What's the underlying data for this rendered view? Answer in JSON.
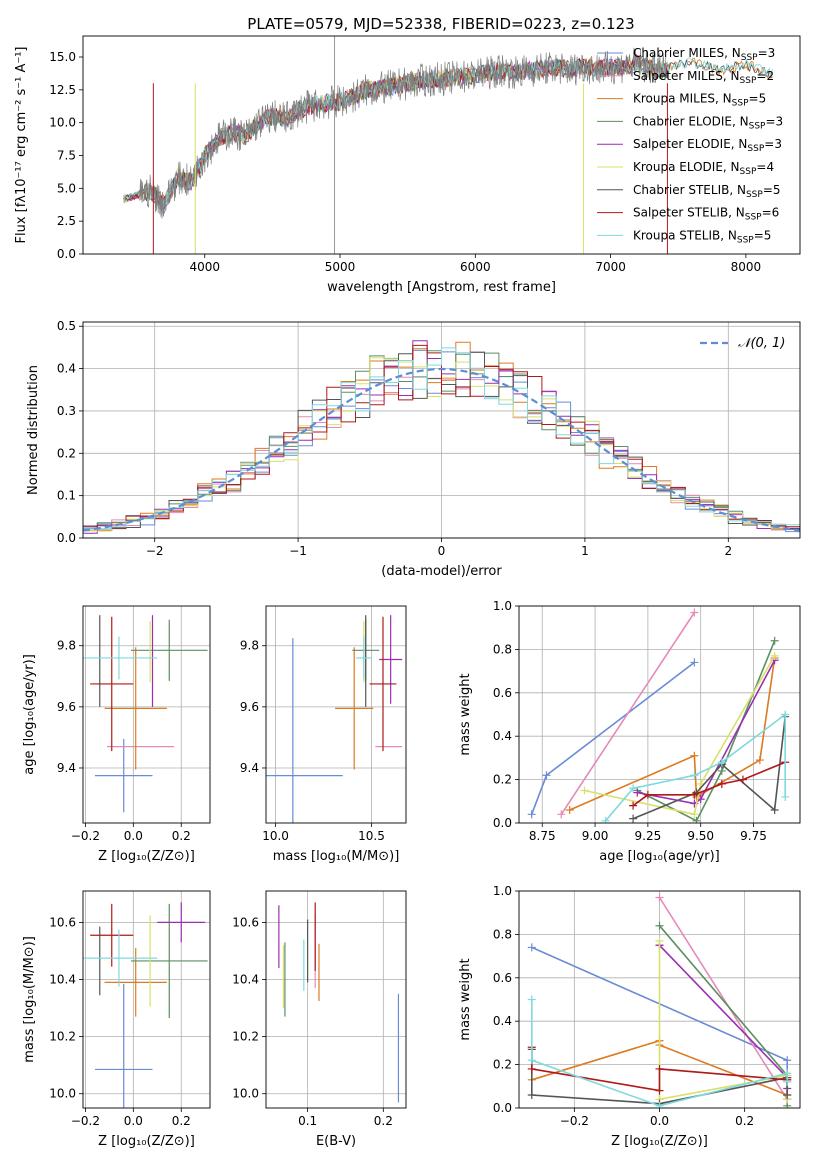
{
  "colors": {
    "Chabrier MILES": "#6a8bd6",
    "Salpeter MILES": "#e589b9",
    "Kroupa MILES": "#dd7a22",
    "Chabrier ELODIE": "#5d8f62",
    "Salpeter ELODIE": "#9a2fb1",
    "Kroupa ELODIE": "#d9e06a",
    "Chabrier STELIB": "#555555",
    "Salpeter STELIB": "#b01919",
    "Kroupa STELIB": "#7fd9dd"
  },
  "chart_data": [
    {
      "id": "spectrum",
      "type": "line",
      "title": "PLATE=0579, MJD=52338, FIBERID=0223, z=0.123",
      "xlabel": "wavelength [Angstrom, rest frame]",
      "ylabel": "Flux [fλ10⁻¹⁷ erg cm⁻² s⁻¹ A⁻¹]",
      "xlim": [
        3100,
        8400
      ],
      "ylim": [
        0,
        16.6
      ],
      "xticks": [
        4000,
        5000,
        6000,
        7000,
        8000
      ],
      "yticks": [
        0.0,
        2.5,
        5.0,
        7.5,
        10.0,
        12.5,
        15.0
      ],
      "grid": false,
      "legend_position": "right",
      "legend": [
        {
          "series": "Chabrier MILES",
          "label": "Chabrier MILES, N",
          "sub": "SSP",
          "n": "=3"
        },
        {
          "series": "Salpeter MILES",
          "label": "Salpeter MILES, N",
          "sub": "SSP",
          "n": "=2"
        },
        {
          "series": "Kroupa MILES",
          "label": "Kroupa MILES, N",
          "sub": "SSP",
          "n": "=5"
        },
        {
          "series": "Chabrier ELODIE",
          "label": "Chabrier ELODIE, N",
          "sub": "SSP",
          "n": "=3"
        },
        {
          "series": "Salpeter ELODIE",
          "label": "Salpeter ELODIE, N",
          "sub": "SSP",
          "n": "=3"
        },
        {
          "series": "Kroupa ELODIE",
          "label": "Kroupa ELODIE, N",
          "sub": "SSP",
          "n": "=4"
        },
        {
          "series": "Chabrier STELIB",
          "label": "Chabrier STELIB, N",
          "sub": "SSP",
          "n": "=5"
        },
        {
          "series": "Salpeter STELIB",
          "label": "Salpeter STELIB, N",
          "sub": "SSP",
          "n": "=6"
        },
        {
          "series": "Kroupa STELIB",
          "label": "Kroupa STELIB, N",
          "sub": "SSP",
          "n": "=5"
        }
      ],
      "data_spectrum": {
        "color": "#808080",
        "x": [
          3400,
          3500,
          3600,
          3700,
          3800,
          3900,
          4000,
          4100,
          4200,
          4300,
          4400,
          4500,
          4600,
          4700,
          4800,
          4900,
          5000,
          5100,
          5200,
          5300,
          5400,
          5500,
          5600,
          5700,
          5800,
          5900,
          6000,
          6100,
          6200,
          6300,
          6400,
          6500,
          6600,
          6700,
          6800,
          6900,
          7000,
          7100,
          7200,
          7300,
          7400
        ],
        "y": [
          4.2,
          4.5,
          4.8,
          3.8,
          5.8,
          5.5,
          7.5,
          8.8,
          9.3,
          9.0,
          10.0,
          10.5,
          10.3,
          11.0,
          11.3,
          11.5,
          11.6,
          12.0,
          12.5,
          12.6,
          12.8,
          13.0,
          13.2,
          13.3,
          13.4,
          13.5,
          13.6,
          13.8,
          14.0,
          13.8,
          14.0,
          14.1,
          14.2,
          14.0,
          14.3,
          14.1,
          14.2,
          14.3,
          14.5,
          14.1,
          14.0
        ],
        "model_extension_x": [
          7400,
          7600,
          7800,
          8000,
          8200
        ],
        "model_extension_y": [
          14.2,
          14.6,
          14.0,
          14.4,
          13.7
        ]
      }
    },
    {
      "id": "residuals",
      "type": "histogram",
      "xlabel": "(data-model)/error",
      "ylabel": "Normed distribution",
      "xlim": [
        -2.5,
        2.5
      ],
      "ylim": [
        0,
        0.51
      ],
      "xticks": [
        -2,
        -1,
        0,
        1,
        2
      ],
      "yticks": [
        0.0,
        0.1,
        0.2,
        0.3,
        0.4,
        0.5
      ],
      "grid": true,
      "legend_position": "top-right",
      "legend_label": "𝒩(0, 1)",
      "normal_curve": {
        "mean": 0,
        "sigma": 1,
        "color": "#5b8ed6"
      },
      "bin_width": 0.1
    },
    {
      "id": "age-vs-Z",
      "type": "errorbar",
      "xlabel": "Z [log₁₀(Z/Z⊙)]",
      "ylabel": "age  [log₁₀(age/yr)]",
      "xlim": [
        -0.21,
        0.32
      ],
      "ylim": [
        9.22,
        9.93
      ],
      "xticks": [
        -0.2,
        0.0,
        0.2
      ],
      "yticks": [
        9.4,
        9.6,
        9.8
      ],
      "grid": true,
      "points": [
        {
          "series": "Chabrier MILES",
          "x": -0.04,
          "xerr": 0.12,
          "y": 9.375,
          "yerr": 0.12
        },
        {
          "series": "Salpeter MILES",
          "x": 0.03,
          "xerr": 0.14,
          "y": 9.47,
          "yerr": 0.0
        },
        {
          "series": "Kroupa MILES",
          "x": 0.01,
          "xerr": 0.13,
          "y": 9.595,
          "yerr": 0.2
        },
        {
          "series": "Chabrier ELODIE",
          "x": 0.15,
          "xerr": 0.16,
          "y": 9.785,
          "yerr": 0.1
        },
        {
          "series": "Salpeter ELODIE",
          "x": 0.08,
          "xerr": 0.0,
          "y": 9.75,
          "yerr": 0.15
        },
        {
          "series": "Kroupa ELODIE",
          "x": 0.07,
          "xerr": 0.0,
          "y": 9.78,
          "yerr": 0.1
        },
        {
          "series": "Chabrier STELIB",
          "x": -0.14,
          "xerr": 0.0,
          "y": 9.75,
          "yerr": 0.15
        },
        {
          "series": "Salpeter STELIB",
          "x": -0.09,
          "xerr": 0.09,
          "y": 9.675,
          "yerr": 0.22
        },
        {
          "series": "Kroupa STELIB",
          "x": -0.06,
          "xerr": 0.16,
          "y": 9.76,
          "yerr": 0.07
        }
      ]
    },
    {
      "id": "age-vs-mass",
      "type": "errorbar",
      "xlabel": "mass [log₁₀(M/M⊙)]",
      "ylabel": "",
      "xlim": [
        9.95,
        10.68
      ],
      "ylim": [
        9.22,
        9.93
      ],
      "xticks": [
        10.0,
        10.5
      ],
      "yticks": [
        9.4,
        9.6,
        9.8
      ],
      "grid": true,
      "points": [
        {
          "series": "Chabrier MILES",
          "x": 10.09,
          "xerr": 0.26,
          "y": 9.375,
          "yerr": 0.45
        },
        {
          "series": "Salpeter MILES",
          "x": 10.59,
          "xerr": 0.07,
          "y": 9.47,
          "yerr": 0.0
        },
        {
          "series": "Kroupa MILES",
          "x": 10.41,
          "xerr": 0.1,
          "y": 9.595,
          "yerr": 0.2
        },
        {
          "series": "Chabrier ELODIE",
          "x": 10.47,
          "xerr": 0.07,
          "y": 9.785,
          "yerr": 0.1
        },
        {
          "series": "Salpeter ELODIE",
          "x": 10.6,
          "xerr": 0.06,
          "y": 9.755,
          "yerr": 0.145
        },
        {
          "series": "Kroupa ELODIE",
          "x": 10.46,
          "xerr": 0.0,
          "y": 9.78,
          "yerr": 0.1
        },
        {
          "series": "Chabrier STELIB",
          "x": 10.47,
          "xerr": 0.0,
          "y": 9.75,
          "yerr": 0.15
        },
        {
          "series": "Salpeter STELIB",
          "x": 10.56,
          "xerr": 0.07,
          "y": 9.675,
          "yerr": 0.22
        },
        {
          "series": "Kroupa STELIB",
          "x": 10.46,
          "xerr": 0.04,
          "y": 9.76,
          "yerr": 0.07
        }
      ]
    },
    {
      "id": "weight-vs-age",
      "type": "line",
      "xlabel": "age  [log₁₀(age/yr)]",
      "ylabel": "mass weight",
      "xlim": [
        8.64,
        9.97
      ],
      "ylim": [
        0,
        1.0
      ],
      "xticks": [
        8.75,
        9.0,
        9.25,
        9.5,
        9.75
      ],
      "yticks": [
        0.0,
        0.2,
        0.4,
        0.6,
        0.8,
        1.0
      ],
      "grid": true,
      "series": [
        {
          "name": "Chabrier MILES",
          "x": [
            8.7,
            8.77,
            9.47
          ],
          "y": [
            0.04,
            0.22,
            0.74
          ]
        },
        {
          "name": "Salpeter MILES",
          "x": [
            8.84,
            9.47
          ],
          "y": [
            0.04,
            0.97
          ]
        },
        {
          "name": "Kroupa MILES",
          "x": [
            8.88,
            9.47,
            9.48,
            9.78,
            9.85
          ],
          "y": [
            0.06,
            0.31,
            0.12,
            0.29,
            0.76
          ]
        },
        {
          "name": "Chabrier ELODIE",
          "x": [
            9.2,
            9.48,
            9.6,
            9.85
          ],
          "y": [
            0.15,
            0.01,
            0.24,
            0.84
          ]
        },
        {
          "name": "Salpeter ELODIE",
          "x": [
            9.2,
            9.47,
            9.5,
            9.85
          ],
          "y": [
            0.14,
            0.09,
            0.11,
            0.75
          ]
        },
        {
          "name": "Kroupa ELODIE",
          "x": [
            8.95,
            9.47,
            9.5,
            9.85
          ],
          "y": [
            0.15,
            0.04,
            0.18,
            0.77
          ]
        },
        {
          "name": "Chabrier STELIB",
          "x": [
            9.18,
            9.48,
            9.6,
            9.85,
            9.9
          ],
          "y": [
            0.02,
            0.14,
            0.27,
            0.06,
            0.49
          ]
        },
        {
          "name": "Salpeter STELIB",
          "x": [
            9.18,
            9.25,
            9.47,
            9.6,
            9.7,
            9.9
          ],
          "y": [
            0.08,
            0.13,
            0.13,
            0.18,
            0.2,
            0.28
          ]
        },
        {
          "name": "Kroupa STELIB",
          "x": [
            9.05,
            9.18,
            9.47,
            9.6,
            9.9,
            9.9
          ],
          "y": [
            0.01,
            0.16,
            0.22,
            0.28,
            0.5,
            0.12
          ]
        }
      ]
    },
    {
      "id": "mass-vs-Z",
      "type": "errorbar",
      "xlabel": "Z [log₁₀(Z/Z⊙)]",
      "ylabel": "mass [log₁₀(M/M⊙)]",
      "xlim": [
        -0.21,
        0.32
      ],
      "ylim": [
        9.95,
        10.71
      ],
      "xticks": [
        -0.2,
        0.0,
        0.2
      ],
      "yticks": [
        10.0,
        10.2,
        10.4,
        10.6
      ],
      "grid": true,
      "points": [
        {
          "series": "Chabrier MILES",
          "x": -0.04,
          "xerr": 0.12,
          "y": 10.085,
          "yerr": 0.3
        },
        {
          "series": "Salpeter MILES",
          "x": 0.03,
          "xerr": 0.0,
          "y": 10.59,
          "yerr": 0.0
        },
        {
          "series": "Kroupa MILES",
          "x": 0.01,
          "xerr": 0.13,
          "y": 10.39,
          "yerr": 0.12
        },
        {
          "series": "Chabrier ELODIE",
          "x": 0.15,
          "xerr": 0.16,
          "y": 10.465,
          "yerr": 0.2
        },
        {
          "series": "Salpeter ELODIE",
          "x": 0.2,
          "xerr": 0.1,
          "y": 10.6,
          "yerr": 0.07
        },
        {
          "series": "Kroupa ELODIE",
          "x": 0.07,
          "xerr": 0.0,
          "y": 10.465,
          "yerr": 0.16
        },
        {
          "series": "Chabrier STELIB",
          "x": -0.14,
          "xerr": 0.0,
          "y": 10.465,
          "yerr": 0.12
        },
        {
          "series": "Salpeter STELIB",
          "x": -0.09,
          "xerr": 0.09,
          "y": 10.555,
          "yerr": 0.11
        },
        {
          "series": "Kroupa STELIB",
          "x": -0.06,
          "xerr": 0.16,
          "y": 10.475,
          "yerr": 0.1
        }
      ]
    },
    {
      "id": "mass-vs-EBV",
      "type": "errorbar",
      "xlabel": "E(B-V)",
      "ylabel": "",
      "xlim": [
        0.045,
        0.23
      ],
      "ylim": [
        9.95,
        10.71
      ],
      "xticks": [
        0.1,
        0.2
      ],
      "yticks": [
        10.0,
        10.2,
        10.4,
        10.6
      ],
      "grid": true,
      "points": [
        {
          "series": "Chabrier MILES",
          "x": 0.22,
          "xerr": 0.0,
          "y": 10.16,
          "yerr": 0.19
        },
        {
          "series": "Salpeter MILES",
          "x": 0.11,
          "xerr": 0.0,
          "y": 10.5,
          "yerr": 0.13
        },
        {
          "series": "Kroupa MILES",
          "x": 0.115,
          "xerr": 0.0,
          "y": 10.425,
          "yerr": 0.1
        },
        {
          "series": "Chabrier ELODIE",
          "x": 0.07,
          "xerr": 0.0,
          "y": 10.4,
          "yerr": 0.13
        },
        {
          "series": "Salpeter ELODIE",
          "x": 0.062,
          "xerr": 0.0,
          "y": 10.55,
          "yerr": 0.11
        },
        {
          "series": "Kroupa ELODIE",
          "x": 0.068,
          "xerr": 0.0,
          "y": 10.41,
          "yerr": 0.11
        },
        {
          "series": "Chabrier STELIB",
          "x": 0.1,
          "xerr": 0.0,
          "y": 10.5,
          "yerr": 0.11
        },
        {
          "series": "Salpeter STELIB",
          "x": 0.11,
          "xerr": 0.0,
          "y": 10.55,
          "yerr": 0.12
        },
        {
          "series": "Kroupa STELIB",
          "x": 0.095,
          "xerr": 0.0,
          "y": 10.45,
          "yerr": 0.09
        }
      ]
    },
    {
      "id": "weight-vs-Z",
      "type": "line",
      "xlabel": "Z [log₁₀(Z/Z⊙)]",
      "ylabel": "mass weight",
      "xlim": [
        -0.33,
        0.33
      ],
      "ylim": [
        0,
        1.0
      ],
      "xticks": [
        -0.2,
        0.0,
        0.2
      ],
      "yticks": [
        0.0,
        0.2,
        0.4,
        0.6,
        0.8,
        1.0
      ],
      "grid": true,
      "series": [
        {
          "name": "Chabrier MILES",
          "x": [
            -0.3,
            0.3,
            0.3
          ],
          "y": [
            0.74,
            0.22,
            0.04
          ]
        },
        {
          "name": "Salpeter MILES",
          "x": [
            0.0,
            0.3
          ],
          "y": [
            0.97,
            0.04
          ]
        },
        {
          "name": "Kroupa MILES",
          "x": [
            -0.3,
            0.0,
            0.0,
            0.3,
            0.3
          ],
          "y": [
            0.13,
            0.31,
            0.29,
            0.06,
            0.12
          ]
        },
        {
          "name": "Chabrier ELODIE",
          "x": [
            0.0,
            0.3,
            0.3
          ],
          "y": [
            0.84,
            0.15,
            0.01
          ]
        },
        {
          "name": "Salpeter ELODIE",
          "x": [
            0.0,
            0.0,
            0.3,
            0.3
          ],
          "y": [
            0.75,
            0.75,
            0.14,
            0.09
          ]
        },
        {
          "name": "Kroupa ELODIE",
          "x": [
            0.0,
            0.0,
            0.3,
            0.3
          ],
          "y": [
            0.77,
            0.04,
            0.15,
            0.04
          ]
        },
        {
          "name": "Chabrier STELIB",
          "x": [
            -0.3,
            -0.3,
            0.0,
            0.3,
            0.3
          ],
          "y": [
            0.27,
            0.06,
            0.02,
            0.14,
            0.06
          ]
        },
        {
          "name": "Salpeter STELIB",
          "x": [
            -0.3,
            -0.3,
            0.0,
            0.0,
            0.3,
            0.3
          ],
          "y": [
            0.28,
            0.18,
            0.08,
            0.18,
            0.13,
            0.13
          ]
        },
        {
          "name": "Kroupa STELIB",
          "x": [
            -0.3,
            -0.3,
            0.0,
            0.3,
            0.3
          ],
          "y": [
            0.5,
            0.22,
            0.01,
            0.16,
            0.12
          ]
        }
      ]
    }
  ]
}
